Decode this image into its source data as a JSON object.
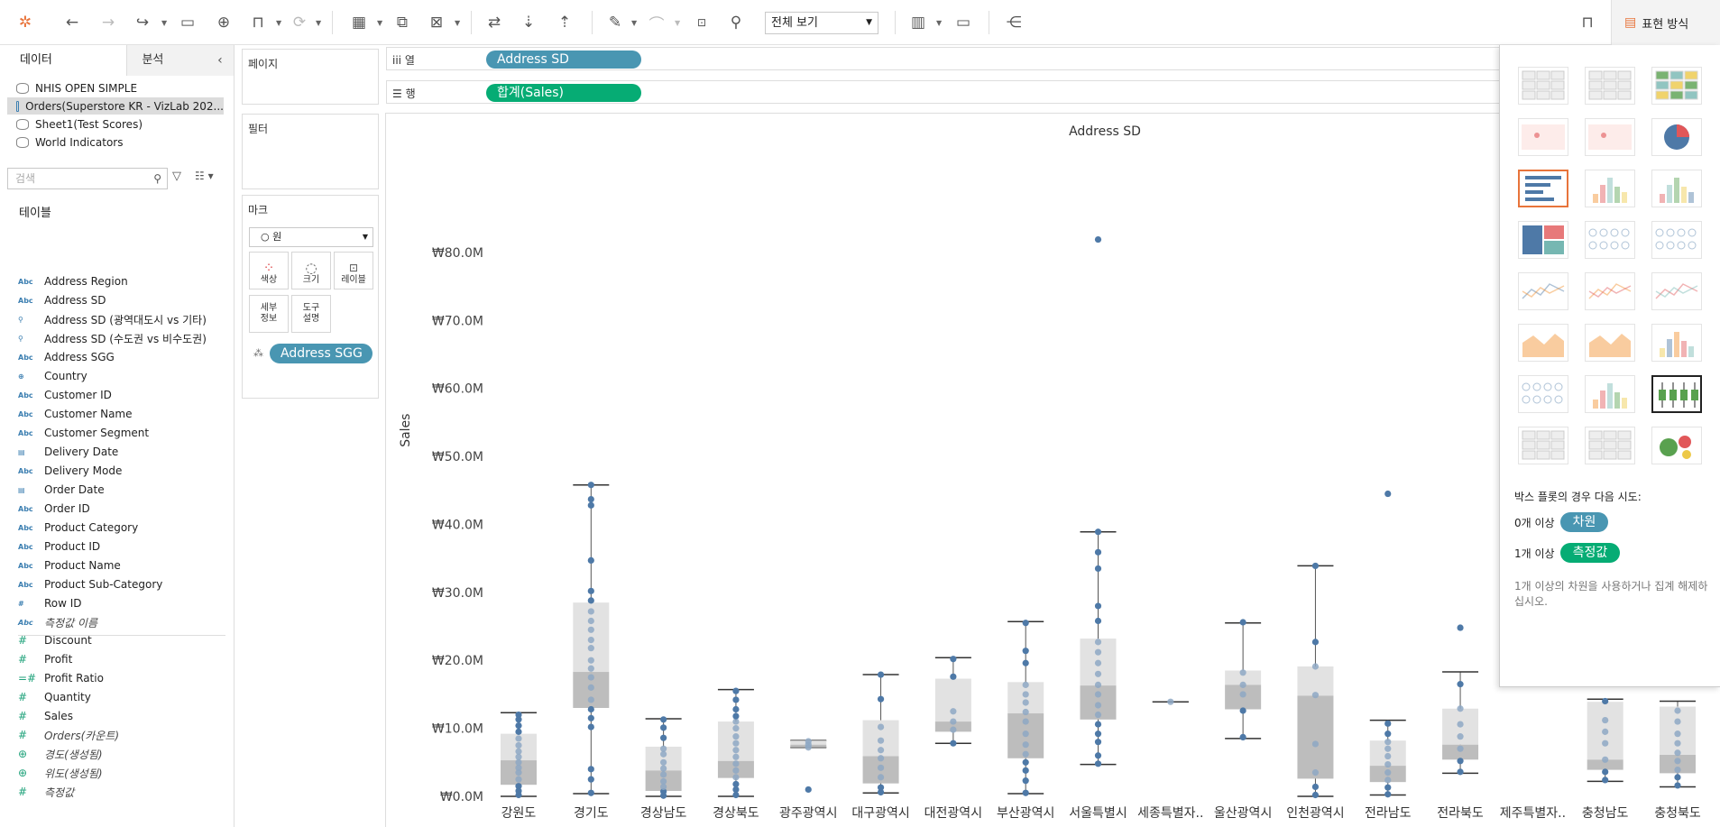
{
  "toolbar": {
    "view_select": "전체 보기",
    "show_me_label": "표현 방식"
  },
  "left_panel": {
    "tabs": {
      "data": "데이터",
      "analytics": "분석"
    },
    "datasources": [
      "NHIS OPEN SIMPLE",
      "Orders(Superstore KR - VizLab 202...",
      "Sheet1(Test Scores)",
      "World Indicators"
    ],
    "search_placeholder": "검색",
    "tables_header": "테이블",
    "dimensions": [
      {
        "type": "Abc",
        "name": "Address Region"
      },
      {
        "type": "Abc",
        "name": "Address SD"
      },
      {
        "type": "⚲",
        "name": "Address SD (광역대도시 vs 기타)"
      },
      {
        "type": "⚲",
        "name": "Address SD (수도권 vs 비수도권)"
      },
      {
        "type": "Abc",
        "name": "Address SGG"
      },
      {
        "type": "⊕",
        "name": "Country"
      },
      {
        "type": "Abc",
        "name": "Customer ID"
      },
      {
        "type": "Abc",
        "name": "Customer Name"
      },
      {
        "type": "Abc",
        "name": "Customer Segment"
      },
      {
        "type": "▤",
        "name": "Delivery Date"
      },
      {
        "type": "Abc",
        "name": "Delivery Mode"
      },
      {
        "type": "▤",
        "name": "Order Date"
      },
      {
        "type": "Abc",
        "name": "Order ID"
      },
      {
        "type": "Abc",
        "name": "Product Category"
      },
      {
        "type": "Abc",
        "name": "Product ID"
      },
      {
        "type": "Abc",
        "name": "Product Name"
      },
      {
        "type": "Abc",
        "name": "Product Sub-Category"
      },
      {
        "type": "#",
        "name": "Row ID"
      },
      {
        "type": "Abc",
        "name": "측정값 이름"
      }
    ],
    "measures": [
      {
        "type": "#",
        "name": "Discount"
      },
      {
        "type": "#",
        "name": "Profit"
      },
      {
        "type": "=#",
        "name": "Profit Ratio"
      },
      {
        "type": "#",
        "name": "Quantity"
      },
      {
        "type": "#",
        "name": "Sales"
      },
      {
        "type": "#",
        "name": "Orders(카운트)"
      },
      {
        "type": "⊕",
        "name": "경도(생성됨)"
      },
      {
        "type": "⊕",
        "name": "위도(생성됨)"
      },
      {
        "type": "#",
        "name": "측정값"
      }
    ]
  },
  "cards": {
    "pages": "페이지",
    "filters": "필터",
    "marks": "마크",
    "mark_type": "원",
    "mark_buttons": [
      "색상",
      "크기",
      "레이블",
      "세부\n정보",
      "도구\n설명"
    ],
    "marks_pill": "Address SGG"
  },
  "shelves": {
    "columns_label": "열",
    "rows_label": "행",
    "columns_pill": "Address SD",
    "rows_pill": "합계(Sales)"
  },
  "chart_data": {
    "type": "box-plot",
    "title": "Address SD",
    "ylabel": "Sales",
    "ylim": [
      0,
      85
    ],
    "y_unit": "M",
    "y_ticks": [
      "₩0.0M",
      "₩10.0M",
      "₩20.0M",
      "₩30.0M",
      "₩40.0M",
      "₩50.0M",
      "₩60.0M",
      "₩70.0M",
      "₩80.0M"
    ],
    "y_tick_values": [
      0,
      10,
      20,
      30,
      40,
      50,
      60,
      70,
      80
    ],
    "categories": [
      "강원도",
      "경기도",
      "경상남도",
      "경상북도",
      "광주광역시",
      "대구광역시",
      "대전광역시",
      "부산광역시",
      "서울특별시",
      "세종특별자..",
      "울산광역시",
      "인천광역시",
      "전라남도",
      "전라북도",
      "제주특별자..",
      "충청남도",
      "충청북도"
    ],
    "boxes": [
      {
        "min": 0,
        "q1": 1.7,
        "median": 5.3,
        "q3": 9.2,
        "max": 12.3,
        "points": [
          0.2,
          0.8,
          1.5,
          2.5,
          3.5,
          4.2,
          5.0,
          5.8,
          6.6,
          7.5,
          8.5,
          9.5,
          10.4,
          11.3,
          12.0
        ]
      },
      {
        "min": 0.4,
        "q1": 13.0,
        "median": 18.3,
        "q3": 28.5,
        "max": 45.8,
        "points": [
          0.5,
          2.5,
          4.0,
          10.2,
          11.5,
          12.8,
          14.2,
          16.0,
          17.5,
          18.8,
          20.0,
          21.8,
          23.0,
          24.5,
          25.8,
          27.2,
          28.8,
          30.2,
          34.7,
          42.8,
          43.7,
          45.8
        ]
      },
      {
        "min": 0,
        "q1": 0.8,
        "median": 3.8,
        "q3": 7.3,
        "max": 11.4,
        "points": [
          0.1,
          0.7,
          1.4,
          2.2,
          3.2,
          4.1,
          5.0,
          6.2,
          7.0,
          8.6,
          10.1,
          11.3
        ]
      },
      {
        "min": 0,
        "q1": 2.7,
        "median": 5.2,
        "q3": 11.0,
        "max": 15.7,
        "points": [
          0.2,
          1.0,
          1.8,
          2.8,
          3.8,
          4.8,
          5.8,
          6.8,
          7.8,
          8.8,
          10.0,
          11.0,
          11.8,
          12.8,
          14.2,
          15.5
        ]
      },
      {
        "min": 7.2,
        "q1": 7.2,
        "median": 7.6,
        "q3": 8.2,
        "max": 8.2,
        "points": [
          1.0,
          7.2,
          7.6,
          8.1
        ]
      },
      {
        "min": 0.5,
        "q1": 1.9,
        "median": 5.9,
        "q3": 11.2,
        "max": 17.9,
        "points": [
          0.6,
          1.3,
          2.8,
          4.2,
          5.6,
          6.8,
          8.2,
          10.2,
          14.3,
          17.9
        ]
      },
      {
        "min": 7.8,
        "q1": 9.5,
        "median": 11.0,
        "q3": 17.3,
        "max": 20.4,
        "points": [
          7.8,
          9.8,
          11.0,
          12.5,
          17.6,
          20.2
        ]
      },
      {
        "min": 0.4,
        "q1": 5.6,
        "median": 12.2,
        "q3": 16.8,
        "max": 25.7,
        "points": [
          0.5,
          2.3,
          3.8,
          5.0,
          6.2,
          7.6,
          9.2,
          11.0,
          12.4,
          13.8,
          15.0,
          16.4,
          19.6,
          21.4,
          25.5
        ]
      },
      {
        "min": 4.7,
        "q1": 11.3,
        "median": 16.3,
        "q3": 23.2,
        "max": 38.9,
        "points": [
          4.8,
          6.0,
          8.0,
          9.2,
          10.6,
          12.0,
          13.4,
          15.0,
          16.4,
          18.0,
          19.6,
          21.2,
          22.7,
          25.8,
          28.0,
          33.5,
          35.9,
          38.9,
          81.9
        ]
      },
      {
        "min": 13.9,
        "q1": 13.9,
        "median": 13.9,
        "q3": 13.9,
        "max": 13.9,
        "points": [
          13.9
        ]
      },
      {
        "min": 8.5,
        "q1": 12.8,
        "median": 16.4,
        "q3": 18.5,
        "max": 25.5,
        "points": [
          8.7,
          12.6,
          15.0,
          16.4,
          18.2,
          25.6
        ]
      },
      {
        "min": 0,
        "q1": 2.6,
        "median": 14.8,
        "q3": 19.1,
        "max": 33.9,
        "points": [
          0.2,
          1.4,
          3.5,
          7.7,
          14.9,
          19.1,
          22.7,
          33.9
        ]
      },
      {
        "min": 0.2,
        "q1": 2.1,
        "median": 4.5,
        "q3": 8.2,
        "max": 11.2,
        "points": [
          0.3,
          1.3,
          2.4,
          3.5,
          4.7,
          5.9,
          7.0,
          8.0,
          9.2,
          10.7,
          44.5
        ]
      },
      {
        "min": 3.4,
        "q1": 5.4,
        "median": 7.6,
        "q3": 12.9,
        "max": 18.3,
        "points": [
          3.6,
          5.2,
          7.0,
          8.8,
          10.6,
          12.9,
          16.5,
          24.8
        ]
      },
      {
        "min": 0,
        "q1": 0,
        "median": 0,
        "q3": 0,
        "max": 0,
        "points": []
      },
      {
        "min": 2.2,
        "q1": 3.9,
        "median": 5.4,
        "q3": 13.9,
        "max": 14.3,
        "points": [
          2.4,
          3.6,
          5.4,
          7.8,
          9.5,
          11.2,
          14.0
        ]
      },
      {
        "min": 1.4,
        "q1": 3.4,
        "median": 6.1,
        "q3": 13.2,
        "max": 14.0,
        "points": [
          1.6,
          2.8,
          3.9,
          5.2,
          6.4,
          7.8,
          9.2,
          11.0,
          12.6
        ]
      }
    ]
  },
  "show_me": {
    "hint_title": "박스 플롯의 경우 다음 시도:",
    "hint_dims_prefix": "0개 이상",
    "hint_dims_pill": "차원",
    "hint_meas_prefix": "1개 이상",
    "hint_meas_pill": "측정값",
    "hint_note": "1개 이상의 차원을 사용하거나 집계 해제하십시오."
  },
  "colors": {
    "dimension_pill": "#4996b2",
    "measure_pill": "#06ac74",
    "points": "#4e79a7",
    "box_upper": "#e2e2e2",
    "box_lower": "#bdbdbd"
  }
}
